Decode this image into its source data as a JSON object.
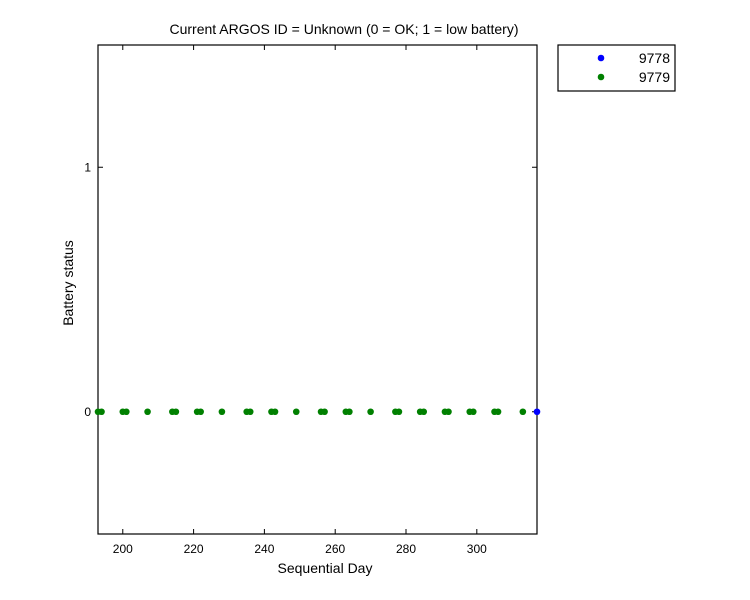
{
  "chart_data": {
    "type": "scatter",
    "title": "Current ARGOS ID = Unknown  (0 = OK; 1 = low battery)",
    "xlabel": "Sequential Day",
    "ylabel": "Battery status",
    "xlim": [
      193,
      317
    ],
    "ylim": [
      -0.5,
      1.5
    ],
    "xticks": [
      200,
      220,
      240,
      260,
      280,
      300
    ],
    "yticks": [
      0,
      1
    ],
    "grid": false,
    "legend_position": "outside-top-right",
    "series": [
      {
        "name": "9778",
        "color": "#0000ff",
        "points": [
          [
            317,
            0
          ]
        ]
      },
      {
        "name": "9779",
        "color": "#008000",
        "points": [
          [
            193,
            0
          ],
          [
            194,
            0
          ],
          [
            200,
            0
          ],
          [
            201,
            0
          ],
          [
            207,
            0
          ],
          [
            214,
            0
          ],
          [
            215,
            0
          ],
          [
            221,
            0
          ],
          [
            222,
            0
          ],
          [
            228,
            0
          ],
          [
            235,
            0
          ],
          [
            236,
            0
          ],
          [
            242,
            0
          ],
          [
            243,
            0
          ],
          [
            249,
            0
          ],
          [
            256,
            0
          ],
          [
            257,
            0
          ],
          [
            263,
            0
          ],
          [
            264,
            0
          ],
          [
            270,
            0
          ],
          [
            277,
            0
          ],
          [
            278,
            0
          ],
          [
            284,
            0
          ],
          [
            285,
            0
          ],
          [
            291,
            0
          ],
          [
            292,
            0
          ],
          [
            298,
            0
          ],
          [
            299,
            0
          ],
          [
            305,
            0
          ],
          [
            306,
            0
          ],
          [
            313,
            0
          ]
        ]
      }
    ]
  }
}
